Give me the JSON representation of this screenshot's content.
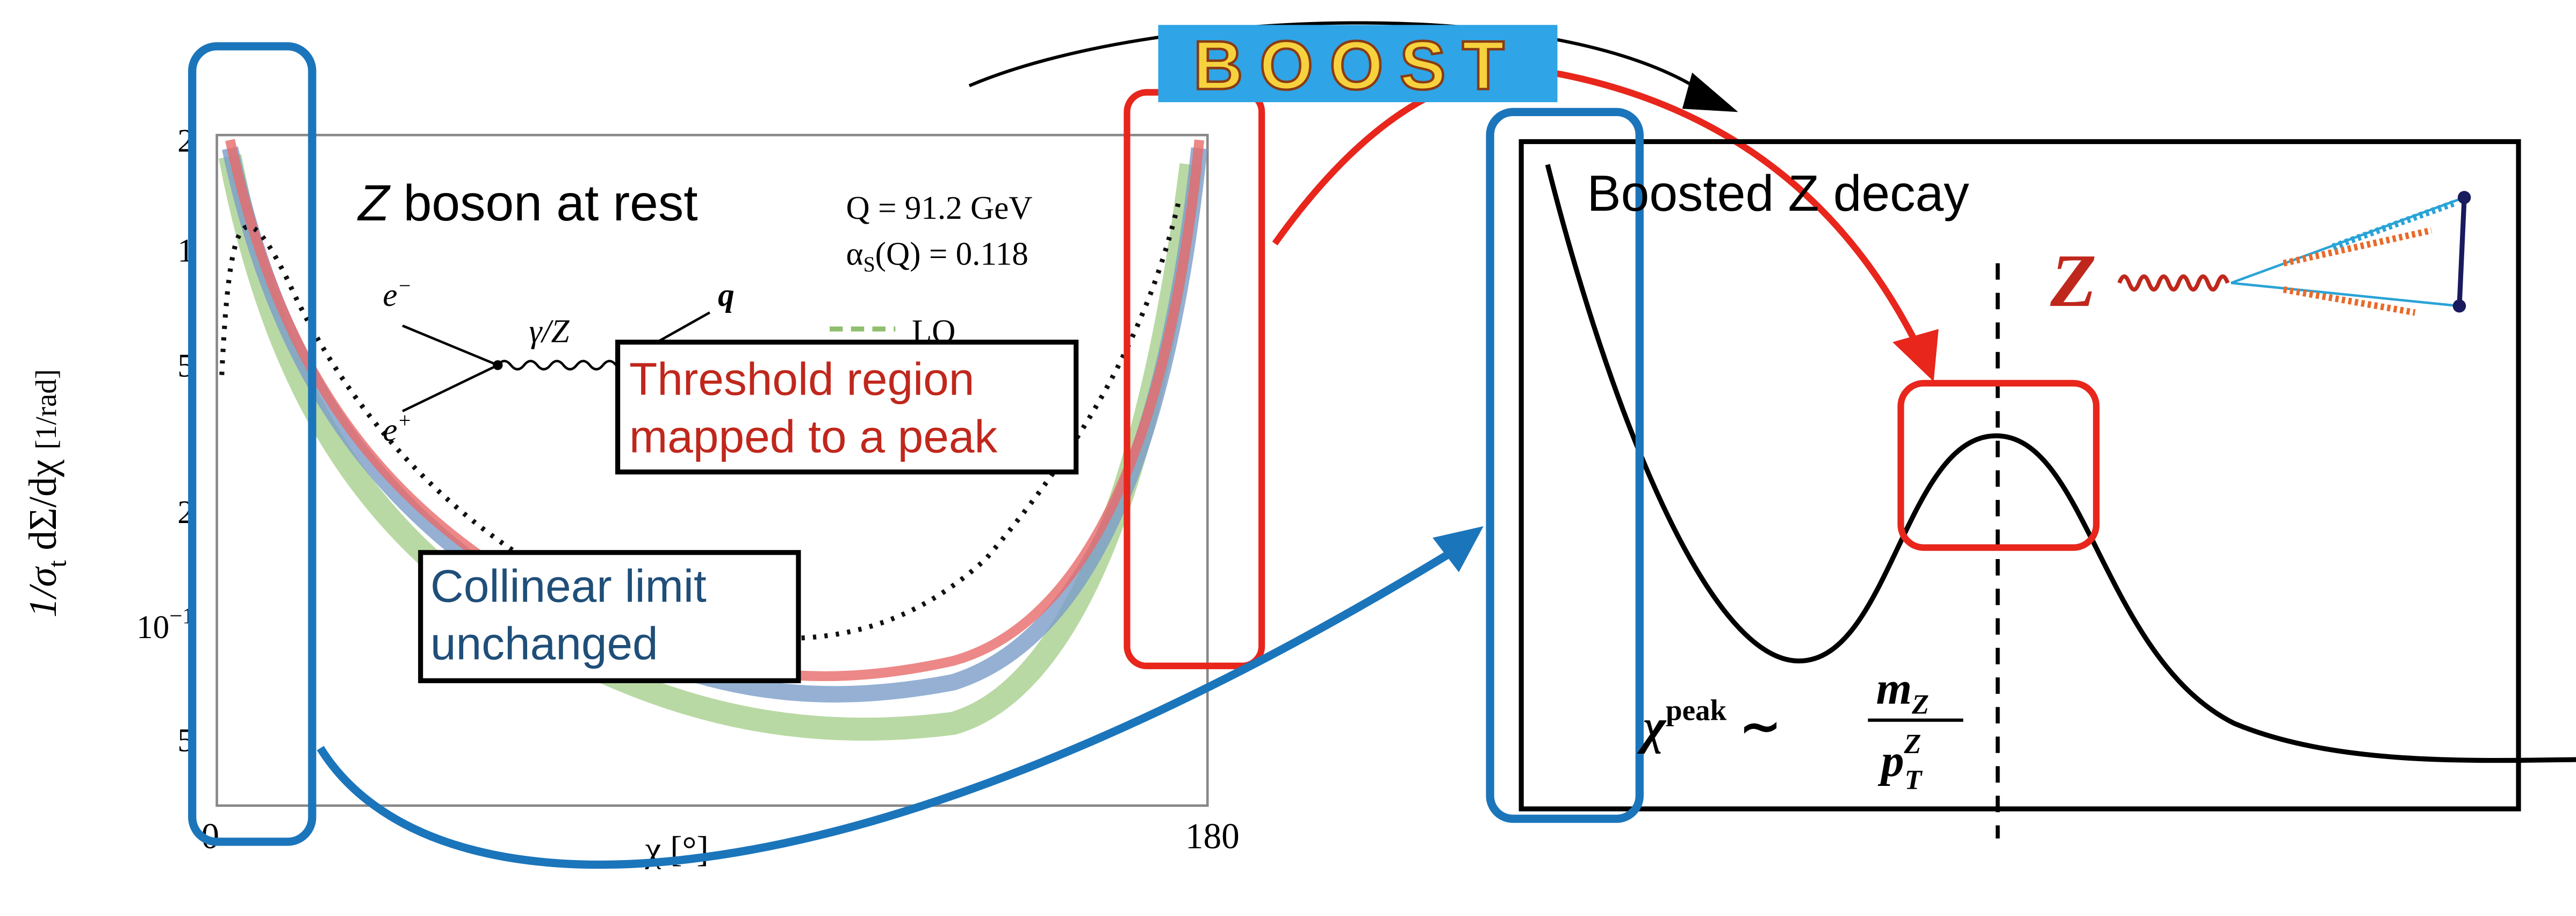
{
  "left_panel": {
    "y_axis_label": {
      "main": "1/σ",
      "sub": "t",
      "rest": " dΣ/dχ",
      "unit": "[1/rad]"
    },
    "title": {
      "italic": "Z",
      "rest": " boson at rest"
    },
    "parameters": [
      "Q = 91.2 GeV",
      "α",
      "S",
      "(Q) = 0.118"
    ],
    "feynman": {
      "electron": "e",
      "electron_sign": "−",
      "positron": "e",
      "positron_sign": "+",
      "propagator": "γ/Z",
      "quark": "q"
    },
    "legend": [
      "LO"
    ],
    "y_ticks": [
      "2",
      "1",
      "5",
      "2",
      "10",
      "−1",
      "5"
    ],
    "x_ticks": [
      "0",
      "180"
    ],
    "x_axis_label": "χ [°]",
    "threshold_box": [
      "Threshold region",
      "mapped to a peak"
    ],
    "collinear_box": [
      "Collinear limit",
      "unchanged"
    ]
  },
  "logo": "BOOST",
  "right_panel": {
    "title": "Boosted Z decay",
    "boson": "Z",
    "formula": {
      "symbol": "χ",
      "superscript": "peak",
      "relation": "∼",
      "numerator": {
        "base": "m",
        "sub": "Z"
      },
      "denominator": {
        "base": "p",
        "sub": "T",
        "sup": "Z"
      }
    }
  }
}
